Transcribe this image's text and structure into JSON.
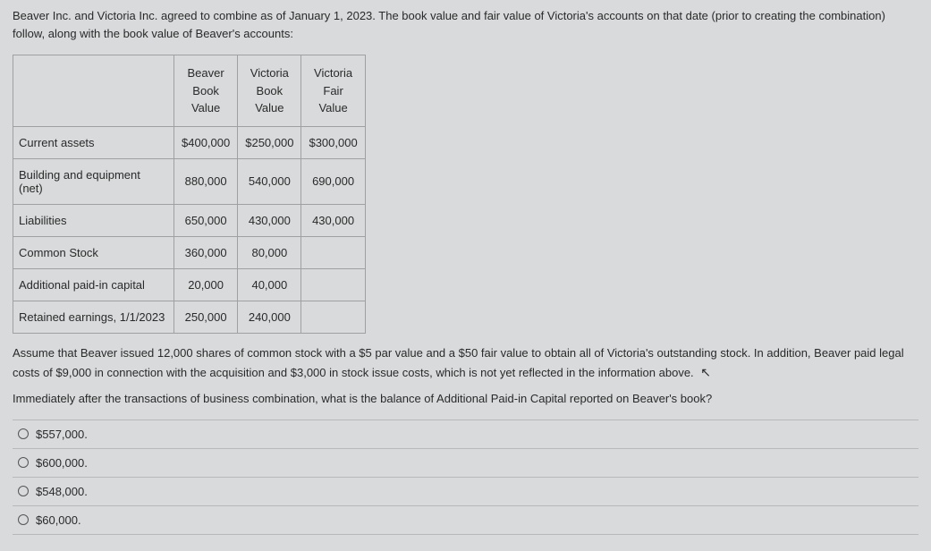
{
  "intro": "Beaver Inc. and Victoria Inc. agreed to combine as of January 1, 2023. The book value and fair value of Victoria's accounts on that date (prior to creating the combination) follow, along with the book value of Beaver's accounts:",
  "table": {
    "col_headers": [
      "Beaver Book Value",
      "Victoria Book Value",
      "Victoria Fair Value"
    ],
    "rows": [
      {
        "label": "Current assets",
        "cells": [
          "$400,000",
          "$250,000",
          "$300,000"
        ]
      },
      {
        "label": "Building and equipment (net)",
        "cells": [
          "880,000",
          "540,000",
          "690,000"
        ]
      },
      {
        "label": "Liabilities",
        "cells": [
          "650,000",
          "430,000",
          "430,000"
        ]
      },
      {
        "label": "Common Stock",
        "cells": [
          "360,000",
          "80,000",
          ""
        ]
      },
      {
        "label": "Additional paid-in capital",
        "cells": [
          "20,000",
          "40,000",
          ""
        ]
      },
      {
        "label": "Retained earnings, 1/1/2023",
        "cells": [
          "250,000",
          "240,000",
          ""
        ]
      }
    ]
  },
  "para1": "Assume that Beaver issued 12,000 shares of common stock with a $5 par value and a $50 fair value to obtain all of Victoria's outstanding stock.  In addition, Beaver paid legal costs of $9,000 in connection with the acquisition and $3,000 in stock issue costs, which is not yet reflected in the information above.",
  "para2": "Immediately after the transactions of business combination, what is the balance of Additional Paid-in Capital reported on Beaver's book?",
  "options": [
    "$557,000.",
    "$600,000.",
    "$548,000.",
    "$60,000."
  ]
}
